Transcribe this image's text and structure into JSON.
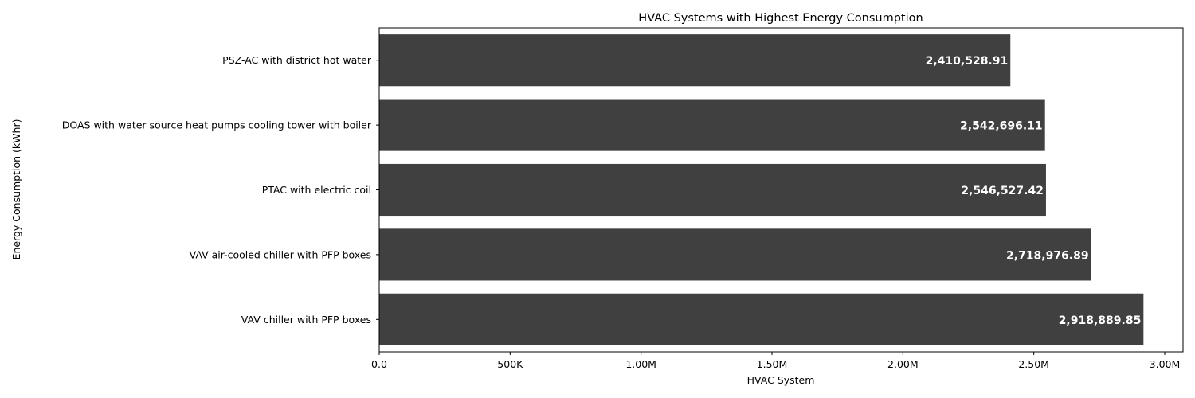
{
  "chart_data": {
    "type": "bar",
    "orientation": "horizontal",
    "title": "HVAC Systems with Highest Energy Consumption",
    "xlabel": "HVAC System",
    "ylabel": "Energy Consumption (kWhr)",
    "xlim": [
      0,
      3070000
    ],
    "x_ticks": [
      0,
      500000,
      1000000,
      1500000,
      2000000,
      2500000,
      3000000
    ],
    "x_tick_labels": [
      "0.0",
      "500K",
      "1.00M",
      "1.50M",
      "2.00M",
      "2.50M",
      "3.00M"
    ],
    "grid": false,
    "bar_color": "#404041",
    "categories": [
      "PSZ-AC with district hot water",
      "DOAS with water source heat pumps cooling tower with boiler",
      "PTAC with electric coil",
      "VAV air-cooled chiller with PFP boxes",
      "VAV chiller with PFP boxes"
    ],
    "values": [
      2410528.91,
      2542696.11,
      2546527.42,
      2718976.89,
      2918889.85
    ],
    "value_labels": [
      "2,410,528.91",
      "2,542,696.11",
      "2,546,527.42",
      "2,718,976.89",
      "2,918,889.85"
    ]
  }
}
